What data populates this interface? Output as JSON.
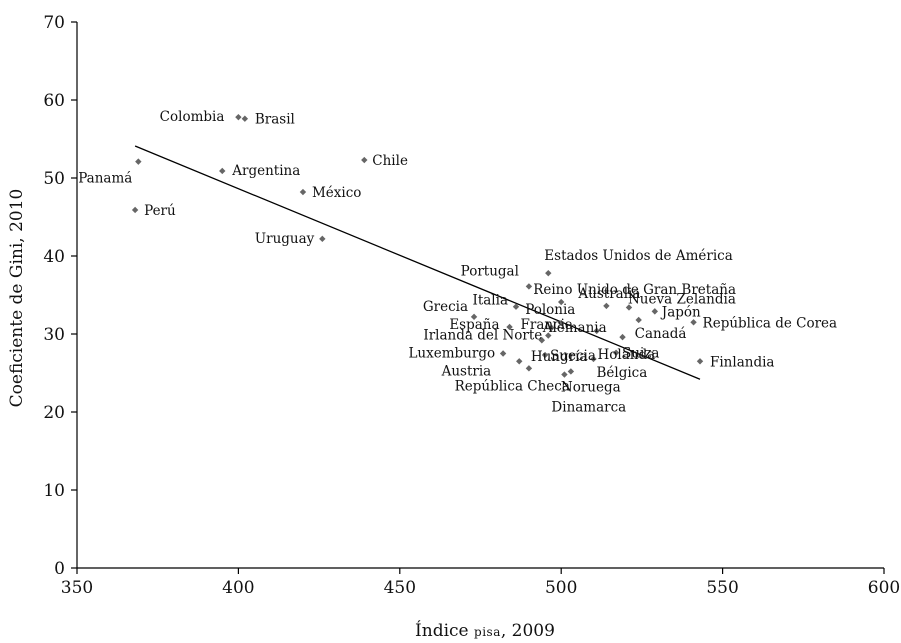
{
  "chart_data": {
    "type": "scatter",
    "xlabel": "Índice PISA, 2009",
    "xlabel_parts": [
      "Índice ",
      "pisa",
      ", 2009"
    ],
    "ylabel": "Coeficiente de Gini, 2010",
    "xlim": [
      350,
      600
    ],
    "ylim": [
      0,
      70
    ],
    "x_ticks": [
      350,
      400,
      450,
      500,
      550,
      600
    ],
    "y_ticks": [
      0,
      10,
      20,
      30,
      40,
      50,
      60,
      70
    ],
    "grid": false,
    "marker_color": "#666666",
    "trendline": {
      "x": [
        368,
        543
      ],
      "y": [
        54.1,
        24.2
      ]
    },
    "points": [
      {
        "name": "Colombia",
        "x": 400,
        "y": 57.8
      },
      {
        "name": "Brasil",
        "x": 402,
        "y": 57.6
      },
      {
        "name": "Panamá",
        "x": 369,
        "y": 52.1
      },
      {
        "name": "Chile",
        "x": 439,
        "y": 52.3
      },
      {
        "name": "Argentina",
        "x": 395,
        "y": 50.9
      },
      {
        "name": "México",
        "x": 420,
        "y": 48.2
      },
      {
        "name": "Perú",
        "x": 368,
        "y": 45.9
      },
      {
        "name": "Uruguay",
        "x": 426,
        "y": 42.2
      },
      {
        "name": "Estados Unidos de América",
        "x": 496,
        "y": 37.8
      },
      {
        "name": "Portugal",
        "x": 490,
        "y": 36.1
      },
      {
        "name": "Reino Unido de Gran Bretaña",
        "x": 500,
        "y": 34.1
      },
      {
        "name": "Australia",
        "x": 514,
        "y": 33.6
      },
      {
        "name": "Nueva Zelandia",
        "x": 521,
        "y": 33.4
      },
      {
        "name": "Italia",
        "x": 486,
        "y": 33.5
      },
      {
        "name": "Grecia",
        "x": 473,
        "y": 32.2
      },
      {
        "name": "Japón",
        "x": 529,
        "y": 32.9
      },
      {
        "name": "Polonia",
        "x": 500,
        "y": 31.4
      },
      {
        "name": "Francia",
        "x": 497,
        "y": 30.8
      },
      {
        "name": "España",
        "x": 484,
        "y": 30.9
      },
      {
        "name": "Alemania",
        "x": 511,
        "y": 30.4
      },
      {
        "name": "República de Corea",
        "x": 541,
        "y": 31.5
      },
      {
        "name": "Canadá",
        "x": 524,
        "y": 31.8
      },
      {
        "name": "Irlanda del Norte",
        "x": 496,
        "y": 29.8
      },
      {
        "name": "Hungría",
        "x": 494,
        "y": 29.2
      },
      {
        "name": "Holanda",
        "x": 519,
        "y": 29.6
      },
      {
        "name": "Luxemburgo",
        "x": 482,
        "y": 27.5
      },
      {
        "name": "Suecia",
        "x": 495,
        "y": 27.3
      },
      {
        "name": "Suiza",
        "x": 517,
        "y": 27.6
      },
      {
        "name": "Finlandia",
        "x": 543,
        "y": 26.5
      },
      {
        "name": "Austria",
        "x": 487,
        "y": 26.5
      },
      {
        "name": "Bélgica",
        "x": 510,
        "y": 26.8
      },
      {
        "name": "República Checa",
        "x": 490,
        "y": 25.6
      },
      {
        "name": "Noruega",
        "x": 503,
        "y": 25.2
      },
      {
        "name": "Dinamarca",
        "x": 501,
        "y": 24.8
      }
    ]
  }
}
